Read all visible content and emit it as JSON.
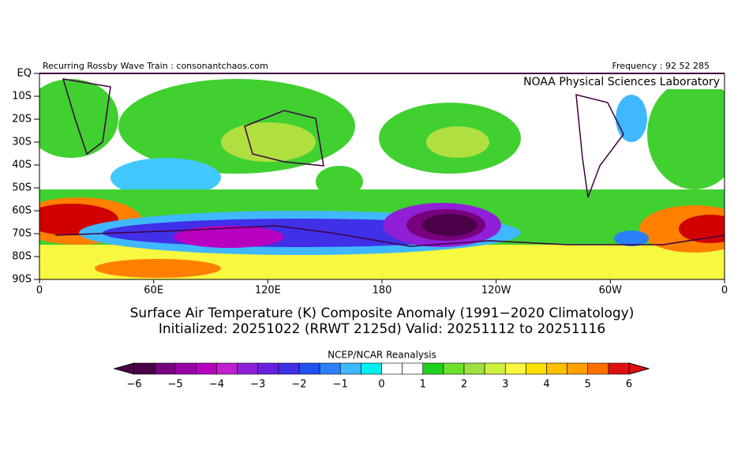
{
  "header": {
    "left": "Recurring Rossby Wave Train : consonantchaos.com",
    "right": "Frequency : 92 52 285"
  },
  "map": {
    "credit": "NOAA Physical Sciences Laboratory",
    "lat_labels": [
      "EQ",
      "10S",
      "20S",
      "30S",
      "40S",
      "50S",
      "60S",
      "70S",
      "80S",
      "90S"
    ],
    "lon_labels": [
      "0",
      "60E",
      "120E",
      "180",
      "120W",
      "60W",
      "0"
    ]
  },
  "caption": {
    "line1": "Surface Air Temperature (K) Composite Anomaly (1991−2020 Climatology)",
    "line2": "Initialized: 20251022 (RRWT 2125d) Valid: 20251112 to 20251116"
  },
  "colorbar": {
    "title": "NCEP/NCAR Reanalysis",
    "colors": [
      "#4a0048",
      "#78007e",
      "#9a00a8",
      "#b800c0",
      "#c020d0",
      "#9020d8",
      "#6a20e0",
      "#4030e8",
      "#2050f0",
      "#2a80f8",
      "#40b8ff",
      "#00f0f0",
      "#ffffff",
      "#ffffff",
      "#20d020",
      "#70e030",
      "#a0e040",
      "#d0f040",
      "#f8f840",
      "#ffe000",
      "#ffc000",
      "#ffa000",
      "#ff7000",
      "#e01010"
    ],
    "labels": [
      "−6",
      "−5",
      "−4",
      "−3",
      "−2",
      "−1",
      "0",
      "1",
      "2",
      "3",
      "4",
      "5",
      "6"
    ]
  }
}
